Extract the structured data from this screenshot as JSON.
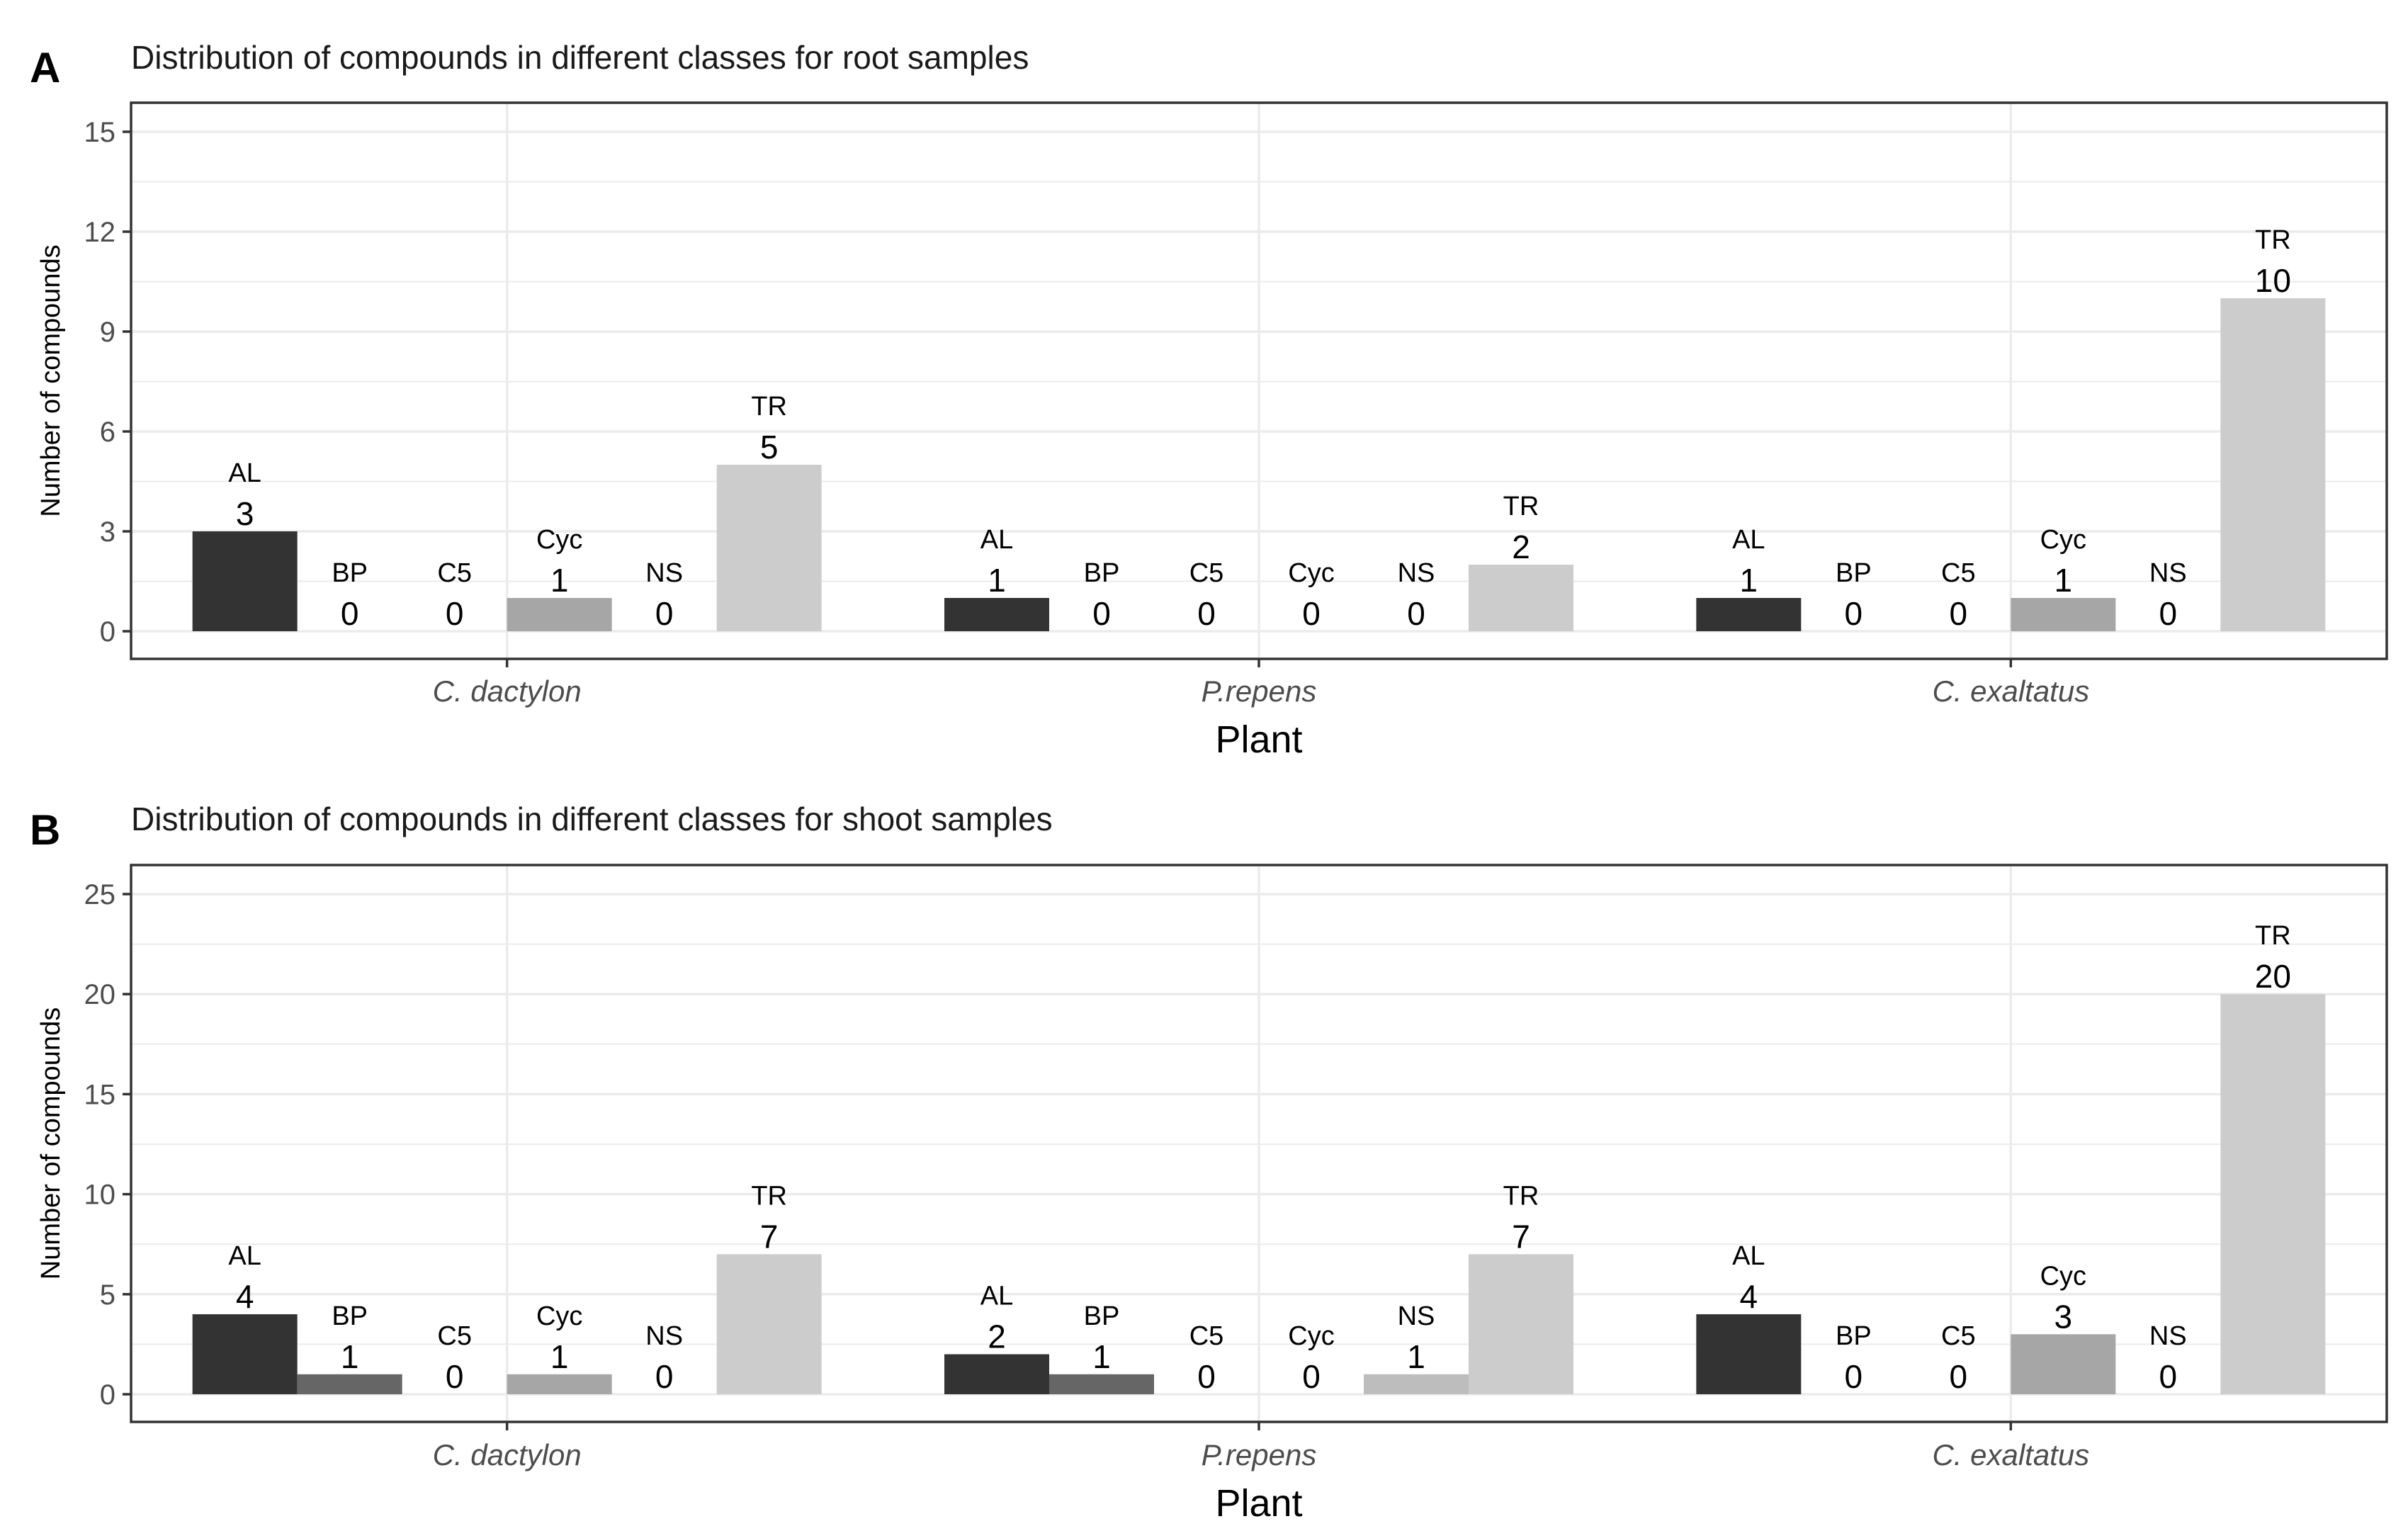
{
  "colors": {
    "AL": "#333333",
    "BP": "#666666",
    "C5": "#8a8a8a",
    "Cyc": "#a6a6a6",
    "NS": "#bdbdbd",
    "TR": "#cccccc",
    "grid": "#ebebeb",
    "frame": "#333333"
  },
  "chart_data": [
    {
      "panel": "A",
      "type": "bar",
      "title": "Distribution of compounds in different classes for root samples",
      "xlabel": "Plant",
      "ylabel": "Number of compounds",
      "categories": [
        "C. dactylon",
        "P.repens",
        "C. exaltatus"
      ],
      "ylim": [
        0,
        15
      ],
      "yticks": [
        0,
        3,
        6,
        9,
        12,
        15
      ],
      "series": [
        {
          "name": "AL",
          "values": [
            3,
            1,
            1
          ]
        },
        {
          "name": "BP",
          "values": [
            0,
            0,
            0
          ]
        },
        {
          "name": "C5",
          "values": [
            0,
            0,
            0
          ]
        },
        {
          "name": "Cyc",
          "values": [
            1,
            0,
            1
          ]
        },
        {
          "name": "NS",
          "values": [
            0,
            0,
            0
          ]
        },
        {
          "name": "TR",
          "values": [
            5,
            2,
            10
          ]
        }
      ]
    },
    {
      "panel": "B",
      "type": "bar",
      "title": "Distribution of compounds in different classes for shoot samples",
      "xlabel": "Plant",
      "ylabel": "Number of compounds",
      "categories": [
        "C. dactylon",
        "P.repens",
        "C. exaltatus"
      ],
      "ylim": [
        0,
        25
      ],
      "yticks": [
        0,
        5,
        10,
        15,
        20,
        25
      ],
      "series": [
        {
          "name": "AL",
          "values": [
            4,
            2,
            4
          ]
        },
        {
          "name": "BP",
          "values": [
            1,
            1,
            0
          ]
        },
        {
          "name": "C5",
          "values": [
            0,
            0,
            0
          ]
        },
        {
          "name": "Cyc",
          "values": [
            1,
            0,
            3
          ]
        },
        {
          "name": "NS",
          "values": [
            0,
            1,
            0
          ]
        },
        {
          "name": "TR",
          "values": [
            7,
            7,
            20
          ]
        }
      ]
    }
  ]
}
